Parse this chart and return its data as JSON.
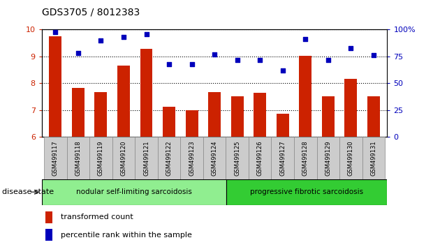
{
  "title": "GDS3705 / 8012383",
  "samples": [
    "GSM499117",
    "GSM499118",
    "GSM499119",
    "GSM499120",
    "GSM499121",
    "GSM499122",
    "GSM499123",
    "GSM499124",
    "GSM499125",
    "GSM499126",
    "GSM499127",
    "GSM499128",
    "GSM499129",
    "GSM499130",
    "GSM499131"
  ],
  "transformed_count": [
    9.75,
    7.82,
    7.68,
    8.65,
    9.28,
    7.12,
    7.0,
    7.68,
    7.52,
    7.65,
    6.88,
    9.02,
    7.52,
    8.18,
    7.52
  ],
  "percentile_rank": [
    98,
    78,
    90,
    93,
    96,
    68,
    68,
    77,
    72,
    72,
    62,
    91,
    72,
    83,
    76
  ],
  "ylim_left": [
    6,
    10
  ],
  "yticks_left": [
    6,
    7,
    8,
    9,
    10
  ],
  "yticks_right": [
    0,
    25,
    50,
    75,
    100
  ],
  "bar_color": "#cc2200",
  "dot_color": "#0000bb",
  "group1_label": "nodular self-limiting sarcoidosis",
  "group2_label": "progressive fibrotic sarcoidosis",
  "group1_count": 8,
  "group2_count": 7,
  "group1_color": "#90ee90",
  "group2_color": "#33cc33",
  "disease_state_label": "disease state",
  "legend_bar_label": "transformed count",
  "legend_dot_label": "percentile rank within the sample",
  "tick_label_bg": "#cccccc",
  "right_axis_color": "#0000bb",
  "left_axis_color": "#cc2200"
}
